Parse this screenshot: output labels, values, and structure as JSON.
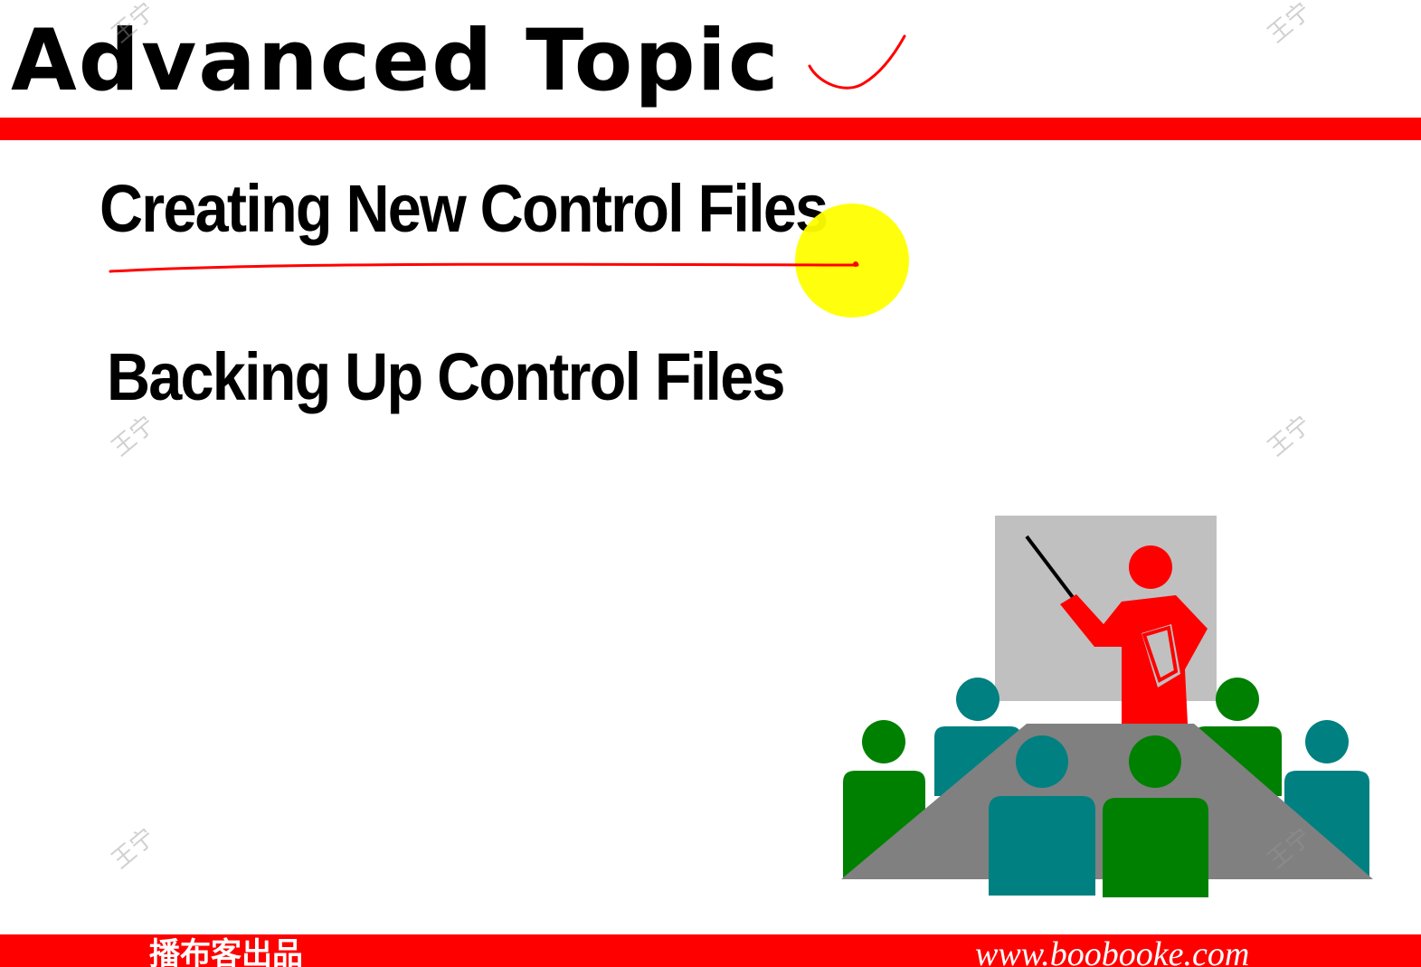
{
  "slide": {
    "title": "Advanced Topic",
    "items": [
      {
        "label": "Creating New Control Files"
      },
      {
        "label": "Backing Up Control Files"
      }
    ]
  },
  "footer": {
    "left_text": "播布客出品",
    "right_text": "www.boobooke.com"
  },
  "watermark_text": "王宁",
  "colors": {
    "accent": "#ff0000",
    "highlight": "#ffff00",
    "screen": "#c0c0c0",
    "table": "#808080",
    "teal": "#008080",
    "green": "#008000"
  },
  "icons": {
    "clipart": "presenter-meeting-icon",
    "annotation": "checkmark-icon",
    "cursor": "cursor-highlight-icon"
  }
}
